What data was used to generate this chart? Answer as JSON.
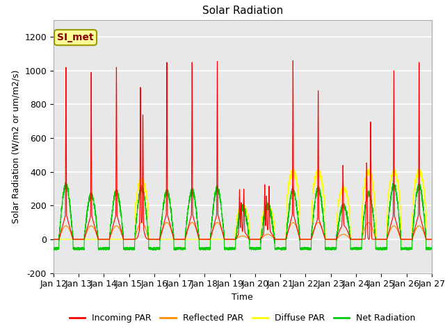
{
  "title": "Solar Radiation",
  "ylabel": "Solar Radiation (W/m2 or um/m2/s)",
  "xlabel": "Time",
  "ylim": [
    -200,
    1300
  ],
  "yticks": [
    -200,
    0,
    200,
    400,
    600,
    800,
    1000,
    1200
  ],
  "x_labels": [
    "Jan 12",
    "Jan 13",
    "Jan 14",
    "Jan 15",
    "Jan 16",
    "Jan 17",
    "Jan 18",
    "Jan 19",
    "Jan 20",
    "Jan 21",
    "Jan 22",
    "Jan 23",
    "Jan 24",
    "Jan 25",
    "Jan 26",
    "Jan 27"
  ],
  "colors": {
    "incoming": "#FF0000",
    "reflected": "#FF8C00",
    "diffuse": "#FFFF00",
    "net": "#00CC00"
  },
  "legend_labels": [
    "Incoming PAR",
    "Reflected PAR",
    "Diffuse PAR",
    "Net Radiation"
  ],
  "annotation_text": "SI_met",
  "annotation_color": "#8B0000",
  "annotation_bg": "#FFFF99",
  "annotation_border": "#999900",
  "background_color": "#E8E8E8",
  "grid_color": "#FFFFFF",
  "n_days": 15,
  "pts_per_day": 288,
  "day_peaks_incoming": [
    1030,
    1000,
    1030,
    820,
    1060,
    1060,
    1065,
    300,
    360,
    1070,
    890,
    360,
    700,
    1010,
    1060
  ],
  "day_peaks_net": [
    320,
    260,
    280,
    300,
    280,
    285,
    300,
    200,
    210,
    300,
    300,
    200,
    270,
    320,
    315
  ],
  "day_peaks_diffuse": [
    0,
    0,
    0,
    350,
    0,
    0,
    0,
    200,
    200,
    400,
    400,
    300,
    400,
    400,
    400
  ],
  "day_peaks_reflected": [
    80,
    80,
    80,
    100,
    100,
    100,
    100,
    20,
    30,
    100,
    100,
    30,
    100,
    80,
    80
  ],
  "night_level": -55,
  "title_fontsize": 11,
  "label_fontsize": 9,
  "tick_fontsize": 9
}
